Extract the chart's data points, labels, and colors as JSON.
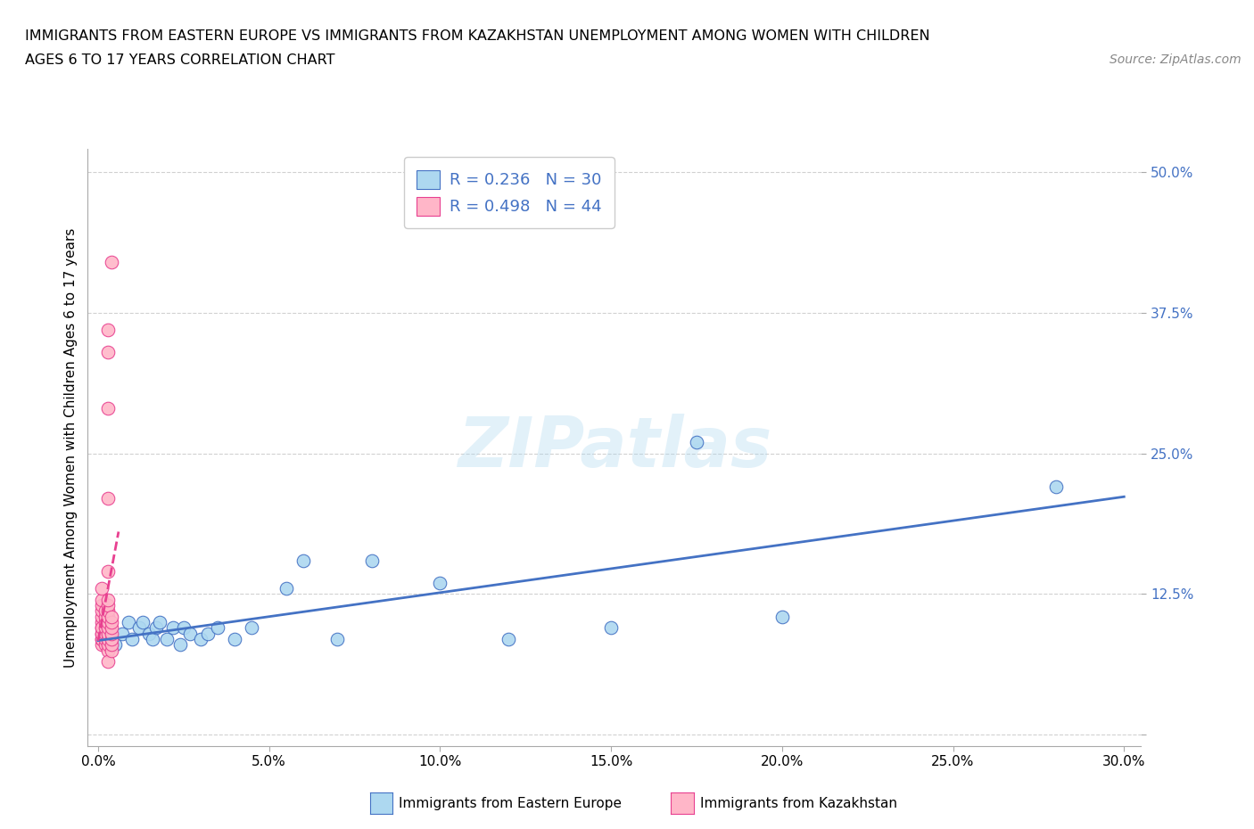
{
  "title_line1": "IMMIGRANTS FROM EASTERN EUROPE VS IMMIGRANTS FROM KAZAKHSTAN UNEMPLOYMENT AMONG WOMEN WITH CHILDREN",
  "title_line2": "AGES 6 TO 17 YEARS CORRELATION CHART",
  "source_text": "Source: ZipAtlas.com",
  "ylabel": "Unemployment Among Women with Children Ages 6 to 17 years",
  "xlim": [
    -0.003,
    0.305
  ],
  "ylim": [
    -0.01,
    0.52
  ],
  "xticks": [
    0.0,
    0.05,
    0.1,
    0.15,
    0.2,
    0.25,
    0.3
  ],
  "xticklabels": [
    "0.0%",
    "5.0%",
    "10.0%",
    "15.0%",
    "20.0%",
    "25.0%",
    "30.0%"
  ],
  "yticks": [
    0.0,
    0.125,
    0.25,
    0.375,
    0.5
  ],
  "yticklabels": [
    "",
    "12.5%",
    "25.0%",
    "37.5%",
    "50.0%"
  ],
  "color_eastern": "#ADD8F0",
  "color_kazakhstan": "#FFB6C8",
  "line_color_eastern": "#4472C4",
  "line_color_kazakhstan": "#E84090",
  "R_eastern": 0.236,
  "N_eastern": 30,
  "R_kazakhstan": 0.498,
  "N_kazakhstan": 44,
  "watermark": "ZIPatlas",
  "legend_label_eastern": "Immigrants from Eastern Europe",
  "legend_label_kazakhstan": "Immigrants from Kazakhstan",
  "eastern_x": [
    0.005,
    0.007,
    0.009,
    0.01,
    0.012,
    0.013,
    0.015,
    0.016,
    0.017,
    0.018,
    0.02,
    0.022,
    0.024,
    0.025,
    0.027,
    0.03,
    0.032,
    0.035,
    0.04,
    0.045,
    0.055,
    0.06,
    0.07,
    0.08,
    0.1,
    0.12,
    0.15,
    0.175,
    0.2,
    0.28
  ],
  "eastern_y": [
    0.08,
    0.09,
    0.1,
    0.085,
    0.095,
    0.1,
    0.09,
    0.085,
    0.095,
    0.1,
    0.085,
    0.095,
    0.08,
    0.095,
    0.09,
    0.085,
    0.09,
    0.095,
    0.085,
    0.095,
    0.13,
    0.155,
    0.085,
    0.155,
    0.135,
    0.085,
    0.095,
    0.26,
    0.105,
    0.22
  ],
  "kazakhstan_x": [
    0.001,
    0.001,
    0.001,
    0.001,
    0.001,
    0.001,
    0.001,
    0.001,
    0.001,
    0.001,
    0.001,
    0.001,
    0.001,
    0.002,
    0.002,
    0.002,
    0.002,
    0.002,
    0.002,
    0.002,
    0.003,
    0.003,
    0.003,
    0.003,
    0.003,
    0.003,
    0.003,
    0.003,
    0.003,
    0.003,
    0.003,
    0.003,
    0.003,
    0.003,
    0.003,
    0.003,
    0.004,
    0.004,
    0.004,
    0.004,
    0.004,
    0.004,
    0.004,
    0.004
  ],
  "kazakhstan_y": [
    0.08,
    0.085,
    0.09,
    0.095,
    0.1,
    0.105,
    0.11,
    0.115,
    0.12,
    0.13,
    0.085,
    0.09,
    0.095,
    0.08,
    0.085,
    0.09,
    0.095,
    0.1,
    0.105,
    0.11,
    0.075,
    0.08,
    0.085,
    0.09,
    0.095,
    0.1,
    0.105,
    0.11,
    0.115,
    0.12,
    0.145,
    0.21,
    0.29,
    0.34,
    0.36,
    0.065,
    0.075,
    0.08,
    0.085,
    0.09,
    0.095,
    0.1,
    0.105,
    0.42
  ]
}
